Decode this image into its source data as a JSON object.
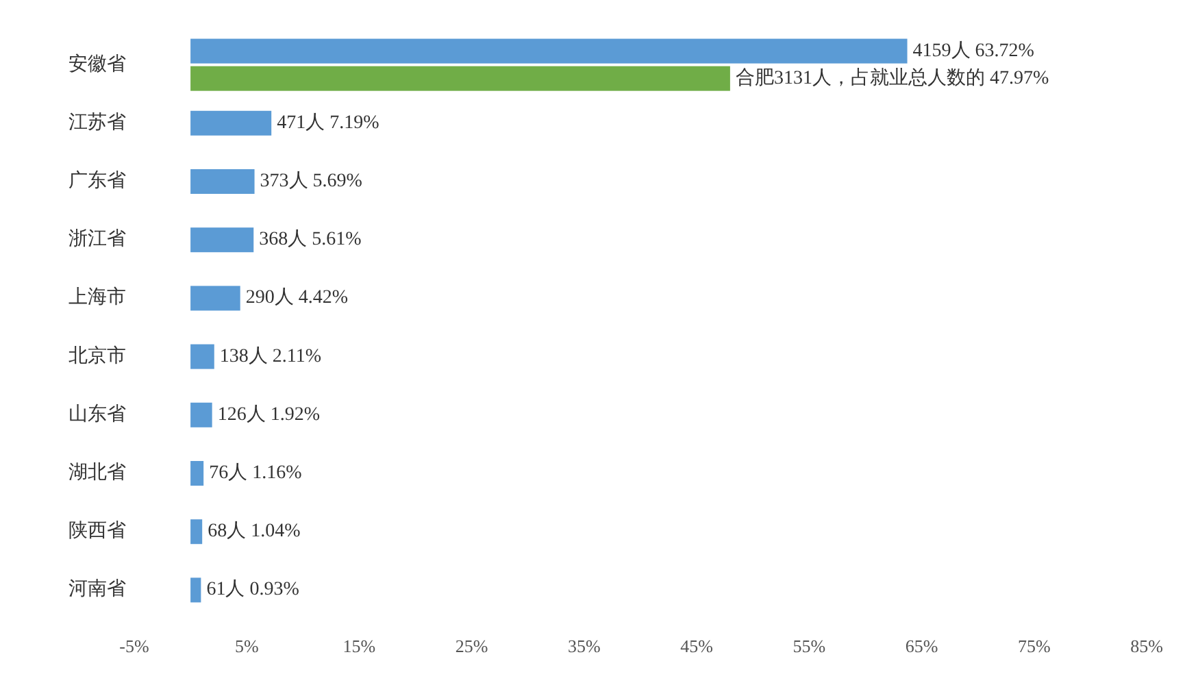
{
  "chart_data": {
    "type": "bar",
    "orientation": "horizontal",
    "categories": [
      "安徽省",
      "江苏省",
      "广东省",
      "浙江省",
      "上海市",
      "北京市",
      "山东省",
      "湖北省",
      "陕西省",
      "河南省"
    ],
    "series": [
      {
        "color": "#5b9bd5",
        "values": [
          63.72,
          7.19,
          5.69,
          5.61,
          4.42,
          2.11,
          1.92,
          1.16,
          1.04,
          0.93
        ],
        "value_labels": [
          "4159人 63.72%",
          "471人 7.19%",
          "373人 5.69%",
          "368人 5.61%",
          "290人 4.42%",
          "138人 2.11%",
          "126人 1.92%",
          "76人 1.16%",
          "68人 1.04%",
          "61人 0.93%"
        ]
      },
      {
        "color": "#70ad47",
        "values": [
          47.97,
          null,
          null,
          null,
          null,
          null,
          null,
          null,
          null,
          null
        ],
        "value_labels": [
          "合肥3131人，占就业总人数的 47.97%",
          null,
          null,
          null,
          null,
          null,
          null,
          null,
          null,
          null
        ]
      }
    ],
    "xlim": [
      -5,
      85
    ],
    "xticks": [
      {
        "value": -5,
        "label": "-5%"
      },
      {
        "value": 5,
        "label": "5%"
      },
      {
        "value": 15,
        "label": "15%"
      },
      {
        "value": 25,
        "label": "25%"
      },
      {
        "value": 35,
        "label": "35%"
      },
      {
        "value": 45,
        "label": "45%"
      },
      {
        "value": 55,
        "label": "55%"
      },
      {
        "value": 65,
        "label": "65%"
      },
      {
        "value": 75,
        "label": "75%"
      },
      {
        "value": 85,
        "label": "85%"
      }
    ],
    "grid": false
  }
}
